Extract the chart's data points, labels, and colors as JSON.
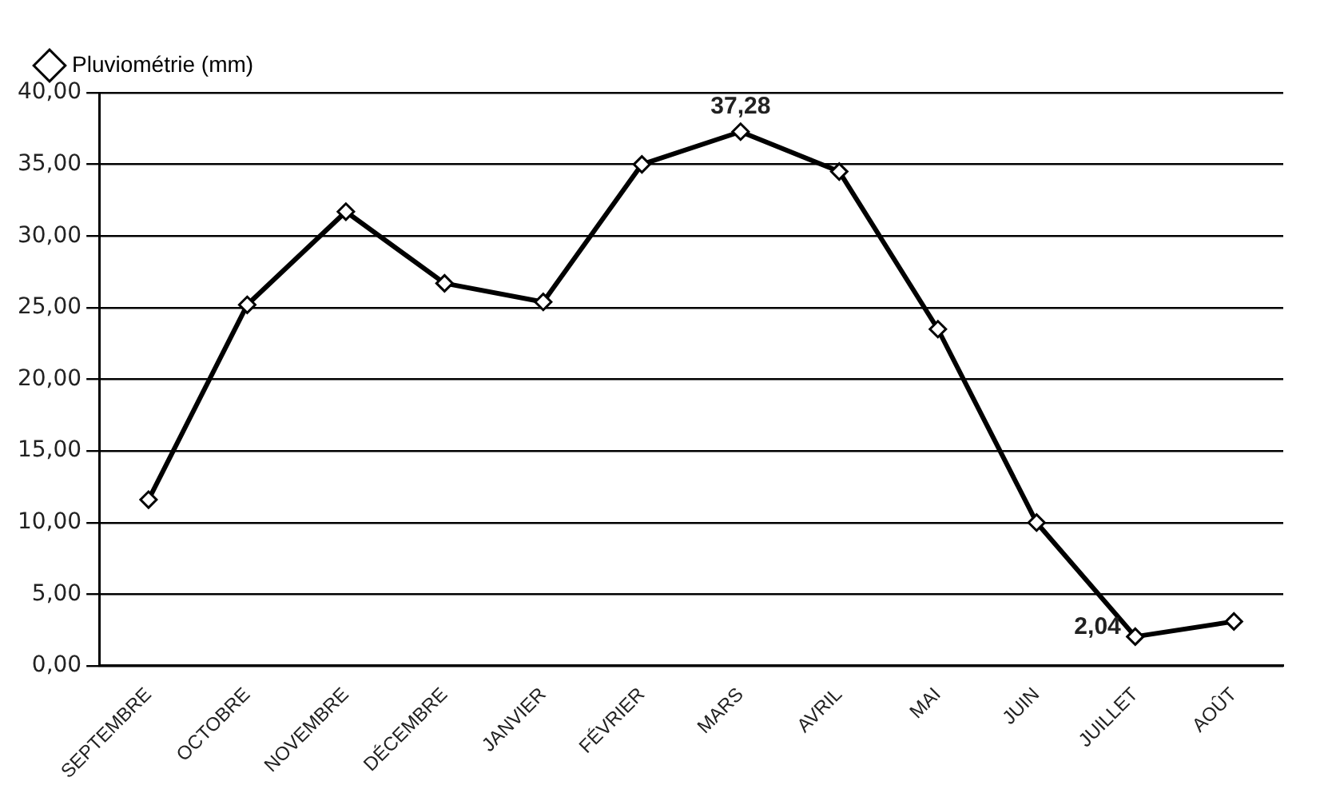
{
  "chart_data": {
    "type": "line",
    "categories": [
      "SEPTEMBRE",
      "OCTOBRE",
      "NOVEMBRE",
      "DÉCEMBRE",
      "JANVIER",
      "FÉVRIER",
      "MARS",
      "AVRIL",
      "MAI",
      "JUIN",
      "JUILLET",
      "AOÛT"
    ],
    "series": [
      {
        "name": "Pluviométrie (mm)",
        "color": "#000000",
        "values": [
          11.6,
          25.2,
          31.7,
          26.7,
          25.4,
          35.0,
          37.28,
          34.5,
          23.5,
          10.0,
          2.04,
          3.1
        ],
        "value_labels": [
          null,
          null,
          null,
          null,
          null,
          null,
          "37,28",
          null,
          null,
          null,
          "2,04",
          null
        ]
      }
    ],
    "ylim": [
      0,
      40
    ],
    "yticks": [
      {
        "value": 0,
        "label": "0,00"
      },
      {
        "value": 5,
        "label": "5,00"
      },
      {
        "value": 10,
        "label": "10,00"
      },
      {
        "value": 15,
        "label": "15,00"
      },
      {
        "value": 20,
        "label": "20,00"
      },
      {
        "value": 25,
        "label": "25,00"
      },
      {
        "value": 30,
        "label": "30,00"
      },
      {
        "value": 35,
        "label": "35,00"
      },
      {
        "value": 40,
        "label": "40,00"
      }
    ],
    "grid": "y",
    "legend": "top left",
    "marker": "diamond",
    "line_style": "solid"
  }
}
